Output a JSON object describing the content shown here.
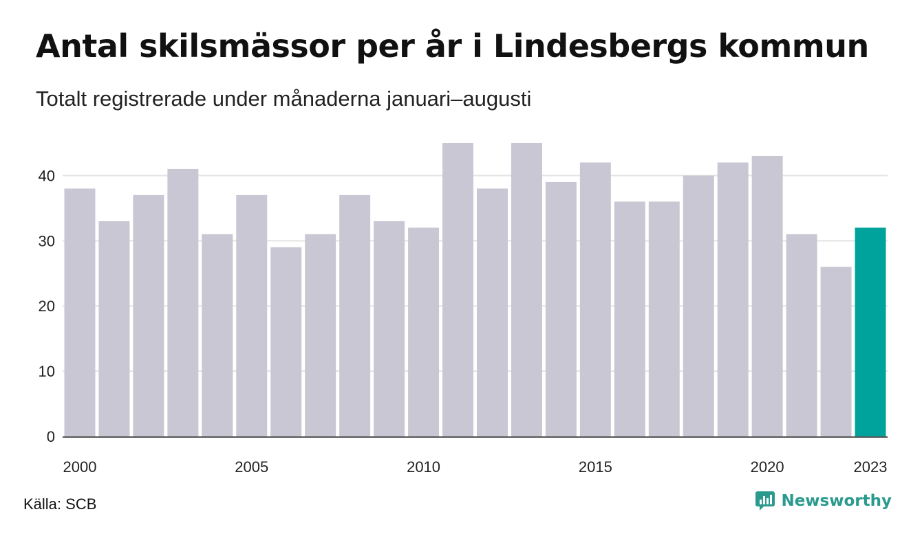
{
  "title": "Antal skilsmässor per år i Lindesbergs kommun",
  "subtitle": "Totalt registrerade under månaderna januari–augusti",
  "source": "Källa: SCB",
  "brand": {
    "name": "Newsworthy",
    "icon": "newsworthy-logo-icon",
    "color": "#2a9a8e"
  },
  "colors": {
    "bar": "#c8c7d3",
    "highlight": "#00a39b",
    "grid": "#e3e3e3",
    "axis": "#555555"
  },
  "chart_data": {
    "type": "bar",
    "title": "Antal skilsmässor per år i Lindesbergs kommun",
    "subtitle": "Totalt registrerade under månaderna januari–augusti",
    "categories": [
      2000,
      2001,
      2002,
      2003,
      2004,
      2005,
      2006,
      2007,
      2008,
      2009,
      2010,
      2011,
      2012,
      2013,
      2014,
      2015,
      2016,
      2017,
      2018,
      2019,
      2020,
      2021,
      2022,
      2023
    ],
    "values": [
      38,
      33,
      37,
      41,
      31,
      37,
      29,
      31,
      37,
      33,
      32,
      45,
      38,
      45,
      39,
      42,
      36,
      36,
      40,
      42,
      43,
      31,
      26,
      32
    ],
    "highlight": [
      2023
    ],
    "ylim": [
      0,
      45
    ],
    "yticks": [
      0,
      10,
      20,
      30,
      40
    ],
    "xtick_labels": [
      "2000",
      "2005",
      "2010",
      "2015",
      "2020",
      "2023"
    ],
    "xlabel": "",
    "ylabel": "",
    "grid": true,
    "legend": false
  }
}
